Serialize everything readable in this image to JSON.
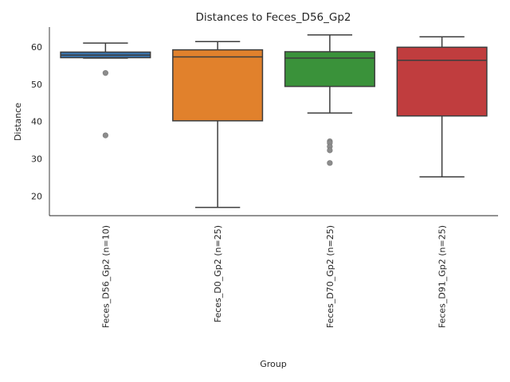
{
  "chart_data": {
    "type": "box",
    "title": "Distances to Feces_D56_Gp2",
    "xlabel": "Group",
    "ylabel": "Distance",
    "ylim": [
      14.8,
      65.3
    ],
    "yticks": [
      20,
      30,
      40,
      50,
      60
    ],
    "grid": false,
    "legend": "none",
    "groups": [
      {
        "name": "Feces_D56_Gp2 (n=10)",
        "color": "#3a75ae",
        "whisker_low": 57.0,
        "q1": 57.1,
        "median": 57.8,
        "q3": 58.6,
        "whisker_high": 61.0,
        "outliers": [
          53.0,
          36.3
        ]
      },
      {
        "name": "Feces_D0_Gp2 (n=25)",
        "color": "#e1812c",
        "whisker_low": 17.0,
        "q1": 40.2,
        "median": 57.3,
        "q3": 59.2,
        "whisker_high": 61.4,
        "outliers": []
      },
      {
        "name": "Feces_D70_Gp2 (n=25)",
        "color": "#3a923a",
        "whisker_low": 42.3,
        "q1": 49.4,
        "median": 57.0,
        "q3": 58.7,
        "whisker_high": 63.2,
        "outliers": [
          34.7,
          34.3,
          33.3,
          32.3,
          28.9
        ]
      },
      {
        "name": "Feces_D91_Gp2 (n=25)",
        "color": "#c03d3e",
        "whisker_low": 25.2,
        "q1": 41.5,
        "median": 56.4,
        "q3": 59.9,
        "whisker_high": 62.7,
        "outliers": []
      }
    ]
  }
}
